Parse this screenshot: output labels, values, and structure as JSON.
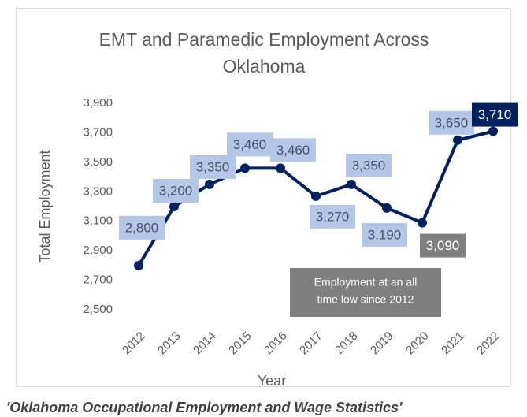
{
  "chart_data": {
    "type": "line",
    "title": [
      "EMT and Paramedic Employment Across",
      "Oklahoma"
    ],
    "x_label": "Year",
    "y_label": "Total Employment",
    "categories": [
      "2012",
      "2013",
      "2014",
      "2015",
      "2016",
      "2017",
      "2018",
      "2019",
      "2020",
      "2021",
      "2022"
    ],
    "values": [
      2800,
      3200,
      3350,
      3460,
      3460,
      3270,
      3350,
      3190,
      3090,
      3650,
      3710
    ],
    "value_labels": [
      "2,800",
      "3,200",
      "3,350",
      "3,460",
      "3,460",
      "3,270",
      "3,350",
      "3,190",
      "3,090",
      "3,650",
      "3,710"
    ],
    "color": "#002060",
    "label_colors": [
      "#b4c7e7",
      "#b4c7e7",
      "#b4c7e7",
      "#b4c7e7",
      "#b4c7e7",
      "#b4c7e7",
      "#b4c7e7",
      "#b4c7e7",
      "#7f7f7f",
      "#b4c7e7",
      "#002060"
    ],
    "label_text_colors": [
      "#44546a",
      "#44546a",
      "#44546a",
      "#44546a",
      "#44546a",
      "#44546a",
      "#44546a",
      "#44546a",
      "#ffffff",
      "#44546a",
      "#ffffff"
    ],
    "ylim": [
      2500,
      3900
    ],
    "yticks": [
      {
        "value": 2500,
        "label": "2,500"
      },
      {
        "value": 2700,
        "label": "2,700"
      },
      {
        "value": 2900,
        "label": "2,900"
      },
      {
        "value": 3100,
        "label": "3,100"
      },
      {
        "value": 3300,
        "label": "3,300"
      },
      {
        "value": 3500,
        "label": "3,500"
      },
      {
        "value": 3700,
        "label": "3,700"
      },
      {
        "value": 3900,
        "label": "3,900"
      }
    ],
    "annotation": [
      "Employment at an all",
      "time low since 2012"
    ],
    "annotation_color": "#7f7f7f",
    "caption": "'Oklahoma Occupational Employment and Wage Statistics'"
  }
}
